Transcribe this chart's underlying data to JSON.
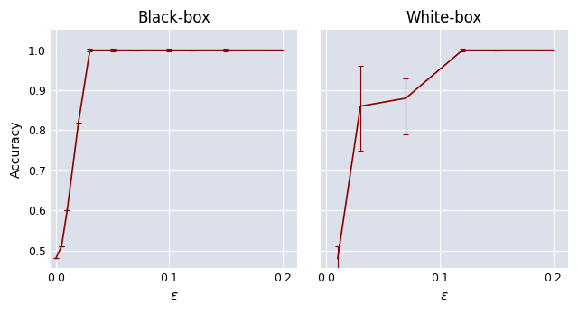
{
  "bb_x": [
    0.0,
    0.005,
    0.01,
    0.02,
    0.03,
    0.05,
    0.07,
    0.1,
    0.12,
    0.15,
    0.2
  ],
  "bb_y": [
    0.48,
    0.51,
    0.6,
    0.82,
    1.0,
    1.0,
    1.0,
    1.0,
    1.0,
    1.0,
    1.0
  ],
  "bb_yerr": [
    0.0,
    0.0,
    0.0,
    0.0,
    0.004,
    0.003,
    0.0,
    0.003,
    0.0,
    0.003,
    0.0
  ],
  "wb_x": [
    0.01,
    0.03,
    0.07,
    0.12,
    0.15,
    0.2
  ],
  "wb_y": [
    0.48,
    0.86,
    0.88,
    1.0,
    1.0,
    1.0
  ],
  "wb_yerr_lo": [
    0.03,
    0.11,
    0.09,
    0.003,
    0.0,
    0.0
  ],
  "wb_yerr_hi": [
    0.03,
    0.1,
    0.05,
    0.003,
    0.0,
    0.0
  ],
  "line_color": "#8b0000",
  "bg_color": "#dce0eb",
  "title_bb": "Black-box",
  "title_wb": "White-box",
  "ylabel": "Accuracy",
  "xlabel": "ε",
  "xlim": [
    -0.005,
    0.213
  ],
  "ylim": [
    0.455,
    1.05
  ],
  "xticks": [
    0.0,
    0.1,
    0.2
  ],
  "yticks": [
    0.5,
    0.6,
    0.7,
    0.8,
    0.9,
    1.0
  ],
  "grid_color": "#ffffff",
  "fig_bg": "#ffffff"
}
